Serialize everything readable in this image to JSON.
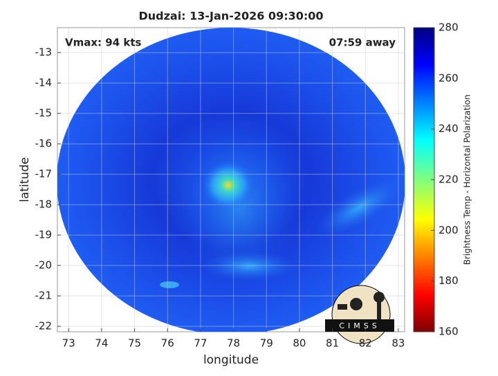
{
  "map": {
    "title": "Dudzai: 13-Jan-2026 09:30:00",
    "xlabel": "longitude",
    "ylabel": "latitude",
    "xlim": [
      72.66,
      83.19
    ],
    "ylim": [
      -22.18,
      -12.18
    ],
    "xticks": [
      73,
      74,
      75,
      76,
      77,
      78,
      79,
      80,
      81,
      82,
      83
    ],
    "yticks": [
      -13,
      -14,
      -15,
      -16,
      -17,
      -18,
      -19,
      -20,
      -21,
      -22
    ],
    "grid": true,
    "annotations": [
      "Vmax: 94 kts",
      "07:59 away"
    ]
  },
  "colorbar": {
    "label": "Brightness Temp - Horizontal Polarization",
    "lim": [
      160,
      280
    ],
    "ticks": [
      160,
      180,
      200,
      220,
      240,
      260,
      280
    ]
  },
  "logo": {
    "text": "CIMSS"
  }
}
